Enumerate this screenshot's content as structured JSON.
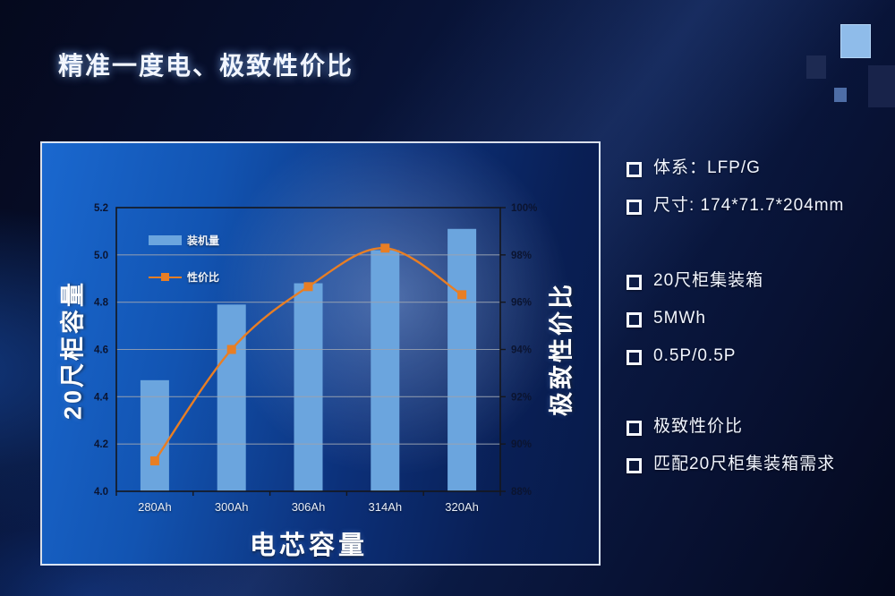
{
  "slide": {
    "title": "精准一度电、极致性价比"
  },
  "specs": {
    "groups": [
      {
        "items": [
          "体系：LFP/G",
          "尺寸: 174*71.7*204mm"
        ]
      },
      {
        "items": [
          "20尺柜集装箱",
          "5MWh",
          "0.5P/0.5P"
        ]
      },
      {
        "items": [
          "极致性价比",
          "匹配20尺柜集装箱需求"
        ]
      }
    ]
  },
  "chart_data": {
    "type": "bar",
    "subtype": "bar+line combo",
    "categories": [
      "280Ah",
      "300Ah",
      "306Ah",
      "314Ah",
      "320Ah"
    ],
    "series": [
      {
        "name": "装机量",
        "type": "bar",
        "axis": "left",
        "values": [
          4.47,
          4.79,
          4.88,
          5.02,
          5.11
        ],
        "color": "#6BA5DE"
      },
      {
        "name": "性价比",
        "type": "line",
        "axis": "right",
        "values": [
          89.5,
          95.0,
          98.1,
          100.0,
          97.7
        ],
        "suffix": "%",
        "color": "#E87E24"
      }
    ],
    "left_axis": {
      "title": "20尺柜容量",
      "min": 4.0,
      "max": 5.2,
      "step": 0.2
    },
    "right_axis": {
      "title": "极致性价比",
      "min": 88,
      "max": 102,
      "step": 2,
      "suffix": "%"
    },
    "x_axis": {
      "title": "电芯容量"
    },
    "legend_position": "inside-top-left",
    "grid": true,
    "colors": {
      "bar": "#6BA5DE",
      "line": "#E87E24",
      "grid": "#9AA3B2",
      "axis": "#15161C",
      "y_tick_label": "#0B1430",
      "x_tick_label": "#E8EEF8"
    }
  }
}
